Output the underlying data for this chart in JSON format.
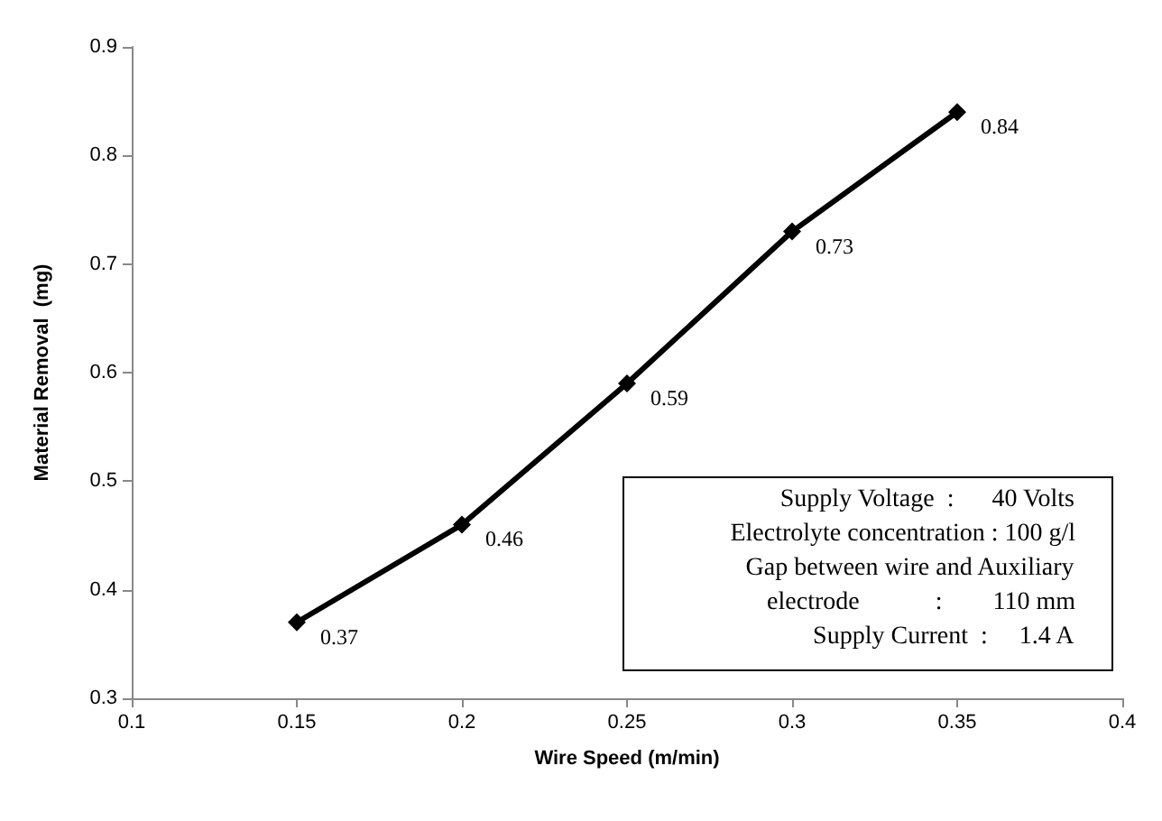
{
  "chart_data": {
    "type": "line",
    "xlabel": "Wire Speed (m/min)",
    "ylabel": "Material Removal  (mg)",
    "x": [
      0.15,
      0.2,
      0.25,
      0.3,
      0.35
    ],
    "series": [
      {
        "color": "#000000",
        "values": [
          0.37,
          0.46,
          0.59,
          0.73,
          0.84
        ]
      }
    ],
    "xlim": [
      0.1,
      0.4
    ],
    "xticks": [
      0.1,
      0.15,
      0.2,
      0.25,
      0.3,
      0.35,
      0.4
    ],
    "ylim": [
      0.3,
      0.9
    ],
    "yticks": [
      0.3,
      0.4,
      0.5,
      0.6,
      0.7,
      0.8,
      0.9
    ],
    "grid": false,
    "marker": "diamond",
    "line_style": "solid",
    "data_labels": true,
    "annotations": [
      "Supply Voltage  :      40 Volts",
      "Electrolyte concentration : 100 g/l",
      "Gap between wire and Auxiliary",
      "electrode            :        110 mm",
      "Supply Current  :     1.4 A"
    ]
  }
}
